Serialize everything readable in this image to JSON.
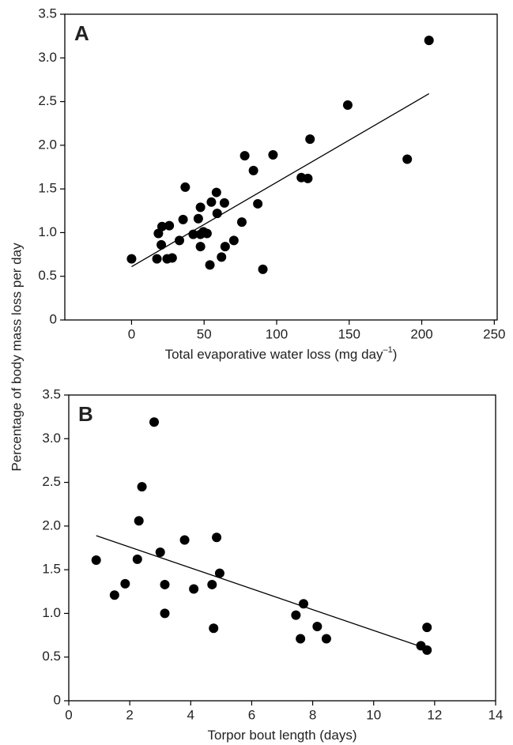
{
  "chart_data": [
    {
      "type": "scatter",
      "label": "A",
      "ylabel": "Percentage of body mass loss per day",
      "xlabel": {
        "text": "Total evaporative water loss (mg day",
        "sup": "–1",
        "end": ")"
      },
      "x": [
        0,
        18.5,
        21,
        20.5,
        17.5,
        26,
        24.5,
        28,
        33,
        35.5,
        37,
        42.5,
        46,
        47.5,
        47.5,
        47.5,
        49.5,
        52,
        54,
        55,
        58.5,
        59,
        62,
        64,
        64.5,
        70.5,
        76,
        78,
        84,
        87,
        90.5,
        97.5,
        117,
        121.5,
        123,
        149,
        190,
        205
      ],
      "y": [
        0.7,
        0.99,
        1.07,
        0.86,
        0.7,
        1.08,
        0.7,
        0.71,
        0.91,
        1.15,
        1.52,
        0.98,
        1.16,
        1.29,
        0.98,
        0.84,
        1.01,
        0.99,
        0.63,
        1.35,
        1.46,
        1.22,
        0.72,
        1.34,
        0.84,
        0.91,
        1.12,
        1.88,
        1.71,
        1.33,
        0.58,
        1.89,
        1.63,
        1.62,
        2.07,
        2.46,
        1.84,
        3.2
      ],
      "trendline": {
        "x": [
          0,
          205
        ],
        "y": [
          0.61,
          2.59
        ]
      },
      "color": "#000000",
      "xlim": [
        -46,
        252
      ],
      "xticks": [
        0,
        50,
        100,
        150,
        200,
        250
      ],
      "ylim": [
        0,
        3.5
      ],
      "yticks": [
        0,
        0.5,
        {
          "value": 1,
          "label": "1.0"
        },
        1.5,
        {
          "value": 2,
          "label": "2.0"
        },
        2.5,
        {
          "value": 3,
          "label": "3.0"
        },
        3.5
      ]
    },
    {
      "type": "scatter",
      "label": "B",
      "xlabel": {
        "text": "Torpor bout length (days)"
      },
      "x": [
        0.9,
        1.5,
        1.85,
        2.25,
        2.3,
        2.4,
        2.8,
        3.0,
        3.15,
        3.15,
        3.8,
        4.1,
        4.7,
        4.75,
        4.85,
        4.95,
        7.45,
        7.6,
        7.7,
        8.15,
        8.45,
        11.55,
        11.75,
        11.75
      ],
      "y": [
        1.61,
        1.21,
        1.34,
        1.62,
        2.06,
        2.45,
        3.19,
        1.7,
        1.33,
        1.0,
        1.84,
        1.28,
        1.33,
        0.83,
        1.87,
        1.46,
        0.98,
        0.71,
        1.11,
        0.85,
        0.71,
        0.63,
        0.58,
        0.84
      ],
      "trendline": {
        "x": [
          0.9,
          11.8
        ],
        "y": [
          1.89,
          0.59
        ]
      },
      "color": "#000000",
      "xlim": [
        0,
        14
      ],
      "xticks": [
        0,
        2,
        4,
        6,
        8,
        10,
        12,
        14
      ],
      "ylim": [
        0,
        3.5
      ],
      "yticks": [
        0,
        0.5,
        {
          "value": 1,
          "label": "1.0"
        },
        1.5,
        {
          "value": 2,
          "label": "2.0"
        },
        2.5,
        {
          "value": 3,
          "label": "3.0"
        },
        3.5
      ]
    }
  ]
}
